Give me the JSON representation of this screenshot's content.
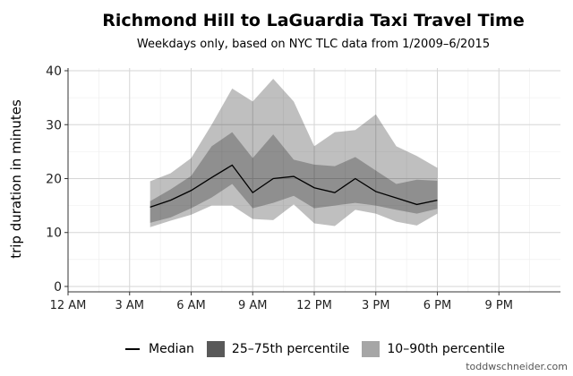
{
  "chart_data": {
    "type": "area",
    "title": "Richmond Hill to LaGuardia Taxi Travel Time",
    "subtitle": "Weekdays only, based on NYC TLC data from 1/2009–6/2015",
    "ylabel": "trip duration in minutes",
    "xlabel": "",
    "ylim": [
      -1,
      40.5
    ],
    "xlim": [
      0,
      24
    ],
    "yticks": [
      0,
      10,
      20,
      30,
      40
    ],
    "xticks": [
      0,
      3,
      6,
      9,
      12,
      15,
      18,
      21
    ],
    "xtick_labels": [
      "12 AM",
      "3 AM",
      "6 AM",
      "9 AM",
      "12 PM",
      "3 PM",
      "6 PM",
      "9 PM"
    ],
    "grid": true,
    "legend_position": "bottom",
    "x": [
      4,
      5,
      6,
      7,
      8,
      9,
      10,
      11,
      12,
      13,
      14,
      15,
      16,
      17,
      18
    ],
    "series": [
      {
        "name": "Median",
        "kind": "line",
        "color": "#000000",
        "values": [
          14.7,
          16.0,
          17.8,
          20.2,
          22.5,
          17.4,
          20.0,
          20.4,
          18.3,
          17.4,
          20.0,
          17.6,
          16.4,
          15.2,
          16.0
        ]
      },
      {
        "name": "25–75th percentile",
        "kind": "band",
        "color": "#7f7f7f",
        "lower": [
          11.8,
          12.8,
          14.5,
          16.5,
          19.0,
          14.5,
          15.5,
          16.8,
          14.5,
          15.0,
          15.5,
          15.0,
          14.2,
          13.5,
          14.4
        ],
        "upper": [
          15.8,
          18.0,
          20.5,
          26.0,
          28.6,
          23.8,
          28.2,
          23.5,
          22.6,
          22.3,
          24.0,
          21.5,
          19.0,
          19.8,
          19.6
        ]
      },
      {
        "name": "10–90th percentile",
        "kind": "band",
        "color": "#c8c8c8",
        "lower": [
          11.0,
          12.2,
          13.3,
          15.0,
          15.0,
          12.5,
          12.3,
          15.2,
          11.7,
          11.2,
          14.2,
          13.5,
          12.0,
          11.3,
          13.5
        ],
        "upper": [
          19.5,
          21.0,
          23.8,
          30.0,
          36.7,
          34.3,
          38.5,
          34.3,
          26.0,
          28.6,
          29.0,
          31.9,
          26.0,
          24.2,
          22.0
        ]
      }
    ]
  },
  "credit": "toddwschneider.com"
}
